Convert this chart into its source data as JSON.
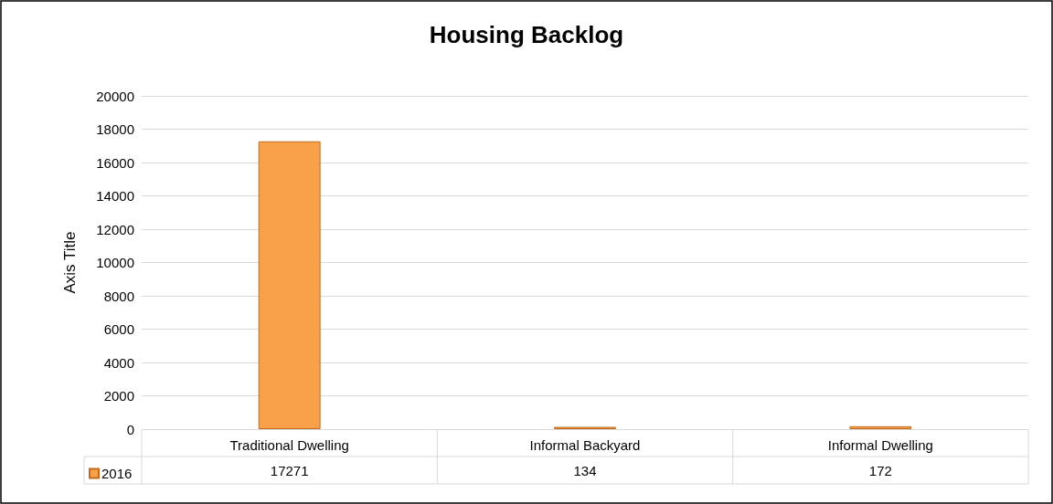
{
  "chart_data": {
    "type": "bar",
    "title": "Housing Backlog",
    "ylabel": "Axis Title",
    "categories": [
      "Traditional Dwelling",
      "Informal Backyard",
      "Informal Dwelling"
    ],
    "series": [
      {
        "name": "2016",
        "color": "#f9a04b",
        "values": [
          17271,
          134,
          172
        ]
      }
    ],
    "ylim": [
      0,
      20000
    ],
    "yticks": [
      0,
      2000,
      4000,
      6000,
      8000,
      10000,
      12000,
      14000,
      16000,
      18000,
      20000
    ],
    "grid": "y",
    "legend": "bottom left",
    "data_labels": true
  }
}
